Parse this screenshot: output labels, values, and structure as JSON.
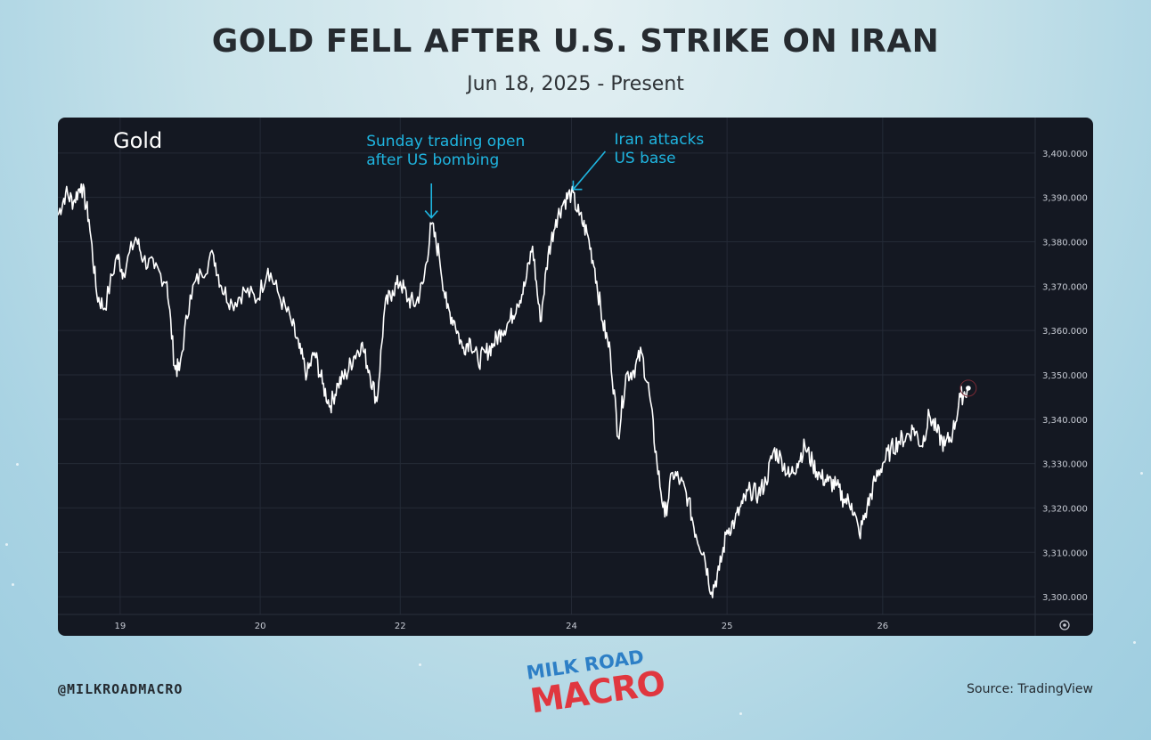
{
  "header": {
    "title": "GOLD FELL AFTER U.S. STRIKE ON IRAN",
    "subtitle": "Jun 18, 2025 - Present"
  },
  "footer": {
    "handle": "@MILKROADMACRO",
    "source": "Source: TradingView",
    "logo_top": "MILK ROAD",
    "logo_bottom": "MACRO"
  },
  "colors": {
    "panel_background": "#141822",
    "price_line": "#ffffff",
    "annotation": "#1fb5e0",
    "grid": "#242a36",
    "tick_label": "#c7cbd4",
    "logo_blue": "#2d7fc6",
    "logo_red": "#e0373f"
  },
  "chart_data": {
    "type": "line",
    "title": "Gold",
    "xlabel": "",
    "ylabel": "",
    "ylim": [
      3296,
      3408
    ],
    "x_ticks": [
      {
        "label": "19",
        "t": 0.4
      },
      {
        "label": "20",
        "t": 1.3
      },
      {
        "label": "22",
        "t": 2.2
      },
      {
        "label": "24",
        "t": 3.3
      },
      {
        "label": "25",
        "t": 4.3
      },
      {
        "label": "26",
        "t": 5.3
      }
    ],
    "y_ticks": [
      "3,300.000",
      "3,310.000",
      "3,320.000",
      "3,330.000",
      "3,340.000",
      "3,350.000",
      "3,360.000",
      "3,370.000",
      "3,380.000",
      "3,390.000",
      "3,400.000"
    ],
    "y_tick_values": [
      3300,
      3310,
      3320,
      3330,
      3340,
      3350,
      3360,
      3370,
      3380,
      3390,
      3400
    ],
    "grid": true,
    "series": [
      {
        "values": [
          [
            0.0,
            3386
          ],
          [
            0.05,
            3391
          ],
          [
            0.1,
            3389
          ],
          [
            0.15,
            3393
          ],
          [
            0.2,
            3385
          ],
          [
            0.25,
            3368
          ],
          [
            0.3,
            3365
          ],
          [
            0.38,
            3377
          ],
          [
            0.42,
            3373
          ],
          [
            0.5,
            3381
          ],
          [
            0.55,
            3376
          ],
          [
            0.62,
            3374
          ],
          [
            0.7,
            3371
          ],
          [
            0.75,
            3352
          ],
          [
            0.78,
            3351
          ],
          [
            0.85,
            3368
          ],
          [
            0.92,
            3373
          ],
          [
            1.0,
            3377
          ],
          [
            1.05,
            3370
          ],
          [
            1.12,
            3366
          ],
          [
            1.2,
            3369
          ],
          [
            1.28,
            3367
          ],
          [
            1.35,
            3374
          ],
          [
            1.42,
            3368
          ],
          [
            1.5,
            3362
          ],
          [
            1.55,
            3356
          ],
          [
            1.6,
            3350
          ],
          [
            1.65,
            3355
          ],
          [
            1.7,
            3348
          ],
          [
            1.75,
            3343
          ],
          [
            1.8,
            3348
          ],
          [
            1.85,
            3350
          ],
          [
            1.9,
            3354
          ],
          [
            1.95,
            3357
          ],
          [
            2.0,
            3351
          ],
          [
            2.05,
            3344
          ],
          [
            2.1,
            3365
          ],
          [
            2.15,
            3369
          ],
          [
            2.2,
            3371
          ],
          [
            2.25,
            3367
          ],
          [
            2.3,
            3366
          ],
          [
            2.35,
            3371
          ],
          [
            2.4,
            3384
          ],
          [
            2.45,
            3377
          ],
          [
            2.5,
            3365
          ],
          [
            2.55,
            3362
          ],
          [
            2.6,
            3356
          ],
          [
            2.65,
            3358
          ],
          [
            2.7,
            3353
          ],
          [
            2.75,
            3355
          ],
          [
            2.8,
            3357
          ],
          [
            2.85,
            3360
          ],
          [
            2.9,
            3362
          ],
          [
            2.95,
            3366
          ],
          [
            3.0,
            3370
          ],
          [
            3.05,
            3379
          ],
          [
            3.1,
            3362
          ],
          [
            3.15,
            3377
          ],
          [
            3.2,
            3385
          ],
          [
            3.25,
            3389
          ],
          [
            3.3,
            3391
          ],
          [
            3.35,
            3386
          ],
          [
            3.4,
            3382
          ],
          [
            3.45,
            3374
          ],
          [
            3.5,
            3362
          ],
          [
            3.55,
            3355
          ],
          [
            3.6,
            3336
          ],
          [
            3.65,
            3350
          ],
          [
            3.7,
            3351
          ],
          [
            3.75,
            3355
          ],
          [
            3.8,
            3346
          ],
          [
            3.85,
            3330
          ],
          [
            3.9,
            3318
          ],
          [
            3.95,
            3328
          ],
          [
            4.0,
            3326
          ],
          [
            4.05,
            3322
          ],
          [
            4.1,
            3314
          ],
          [
            4.15,
            3310
          ],
          [
            4.2,
            3301
          ],
          [
            4.25,
            3306
          ],
          [
            4.3,
            3315
          ],
          [
            4.35,
            3317
          ],
          [
            4.4,
            3321
          ],
          [
            4.45,
            3324
          ],
          [
            4.5,
            3323
          ],
          [
            4.55,
            3326
          ],
          [
            4.6,
            3333
          ],
          [
            4.65,
            3331
          ],
          [
            4.7,
            3327
          ],
          [
            4.75,
            3330
          ],
          [
            4.8,
            3334
          ],
          [
            4.85,
            3330
          ],
          [
            4.9,
            3327
          ],
          [
            4.95,
            3326
          ],
          [
            5.0,
            3325
          ],
          [
            5.05,
            3322
          ],
          [
            5.1,
            3321
          ],
          [
            5.15,
            3314
          ],
          [
            5.2,
            3320
          ],
          [
            5.25,
            3326
          ],
          [
            5.3,
            3330
          ],
          [
            5.35,
            3333
          ],
          [
            5.4,
            3335
          ],
          [
            5.45,
            3336
          ],
          [
            5.5,
            3338
          ],
          [
            5.55,
            3334
          ],
          [
            5.6,
            3341
          ],
          [
            5.65,
            3337
          ],
          [
            5.7,
            3334
          ],
          [
            5.75,
            3337
          ],
          [
            5.8,
            3345
          ],
          [
            5.85,
            3347
          ]
        ]
      }
    ],
    "annotations": [
      {
        "text": [
          "Sunday trading open",
          "after US bombing"
        ],
        "x": 2.4,
        "y": 3384
      },
      {
        "text": [
          "Iran attacks",
          "US base"
        ],
        "x": 3.3,
        "y": 3391
      }
    ]
  }
}
